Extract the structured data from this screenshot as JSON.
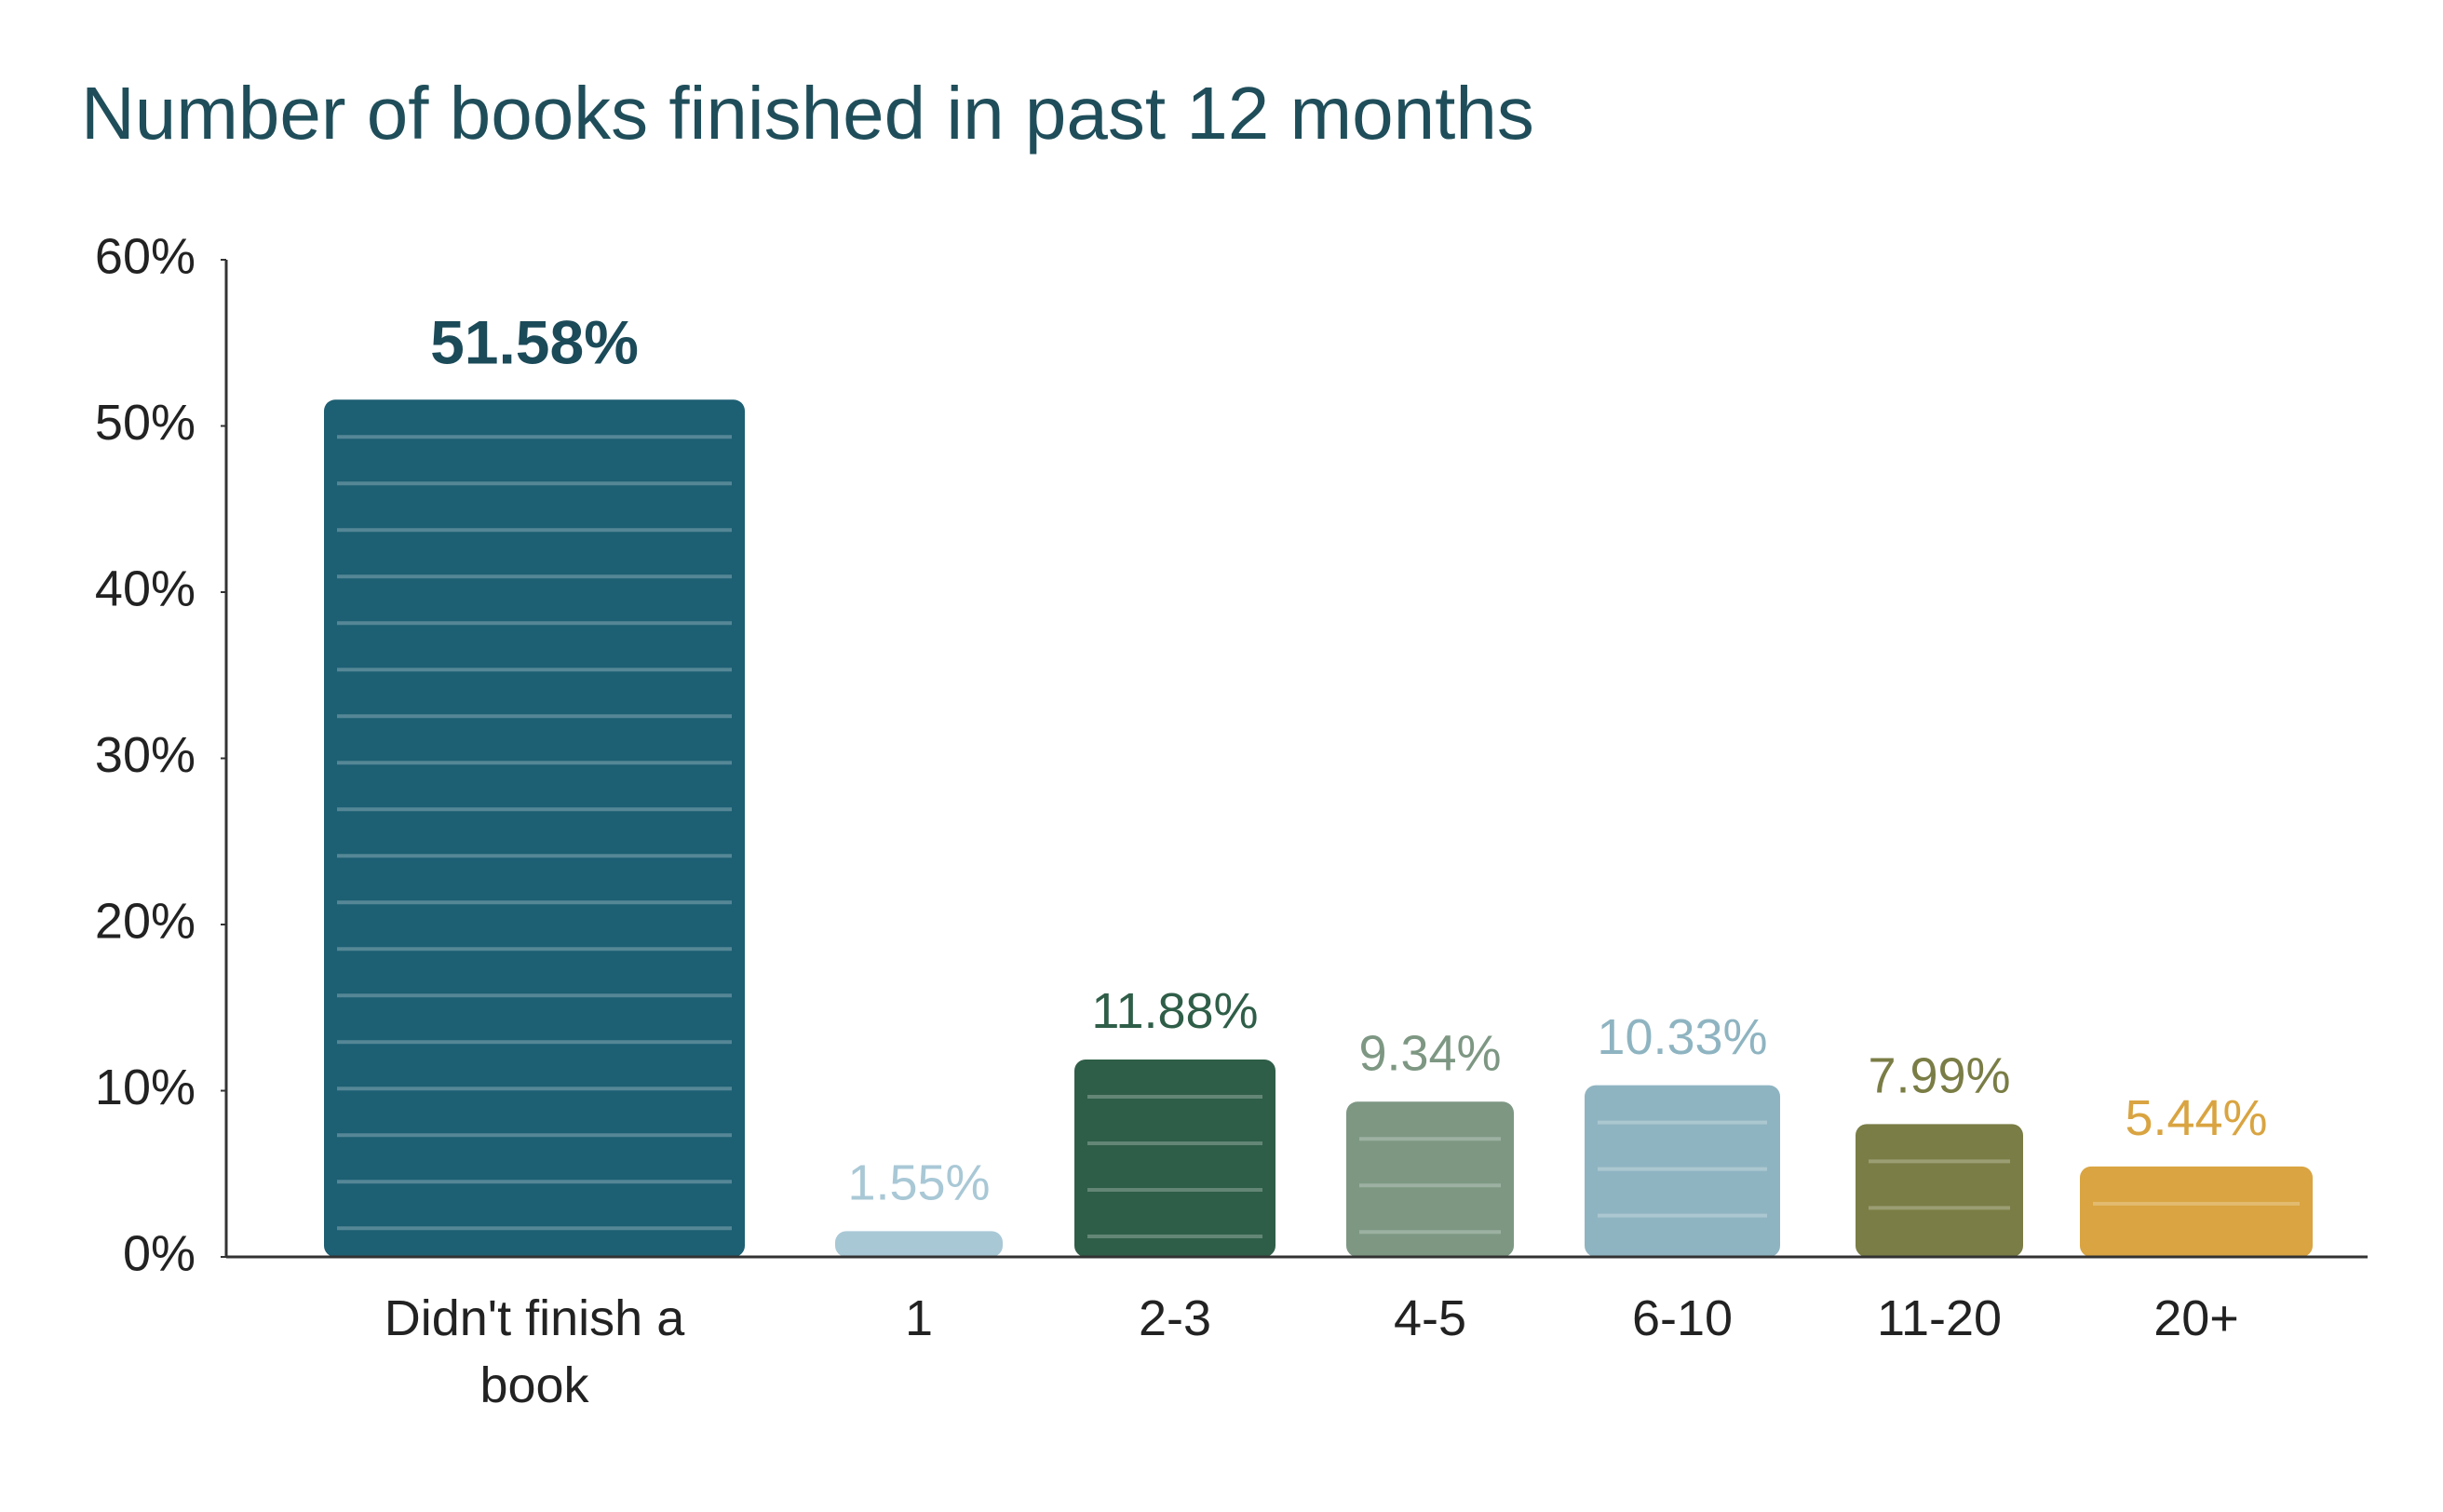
{
  "chart_data": {
    "type": "bar",
    "title": "Number of books finished in past 12 months",
    "categories": [
      "Didn't finish a book",
      "1",
      "2-3",
      "4-5",
      "6-10",
      "11-20",
      "20+"
    ],
    "values": [
      51.58,
      1.55,
      11.88,
      9.34,
      10.33,
      7.99,
      5.44
    ],
    "value_labels": [
      "51.58%",
      "1.55%",
      "11.88%",
      "9.34%",
      "10.33%",
      "7.99%",
      "5.44%"
    ],
    "colors": [
      "#1d5f73",
      "#a9c8d6",
      "#2f5e48",
      "#7d9783",
      "#8fb4c1",
      "#7a7d45",
      "#d9a441"
    ],
    "ylim": [
      0,
      60
    ],
    "yticks": [
      {
        "value": 0,
        "label": "0%"
      },
      {
        "value": 10,
        "label": "10%"
      },
      {
        "value": 20,
        "label": "20%"
      },
      {
        "value": 30,
        "label": "30%"
      },
      {
        "value": 40,
        "label": "40%"
      },
      {
        "value": 50,
        "label": "50%"
      },
      {
        "value": 60,
        "label": "60%"
      }
    ],
    "grid": false
  }
}
